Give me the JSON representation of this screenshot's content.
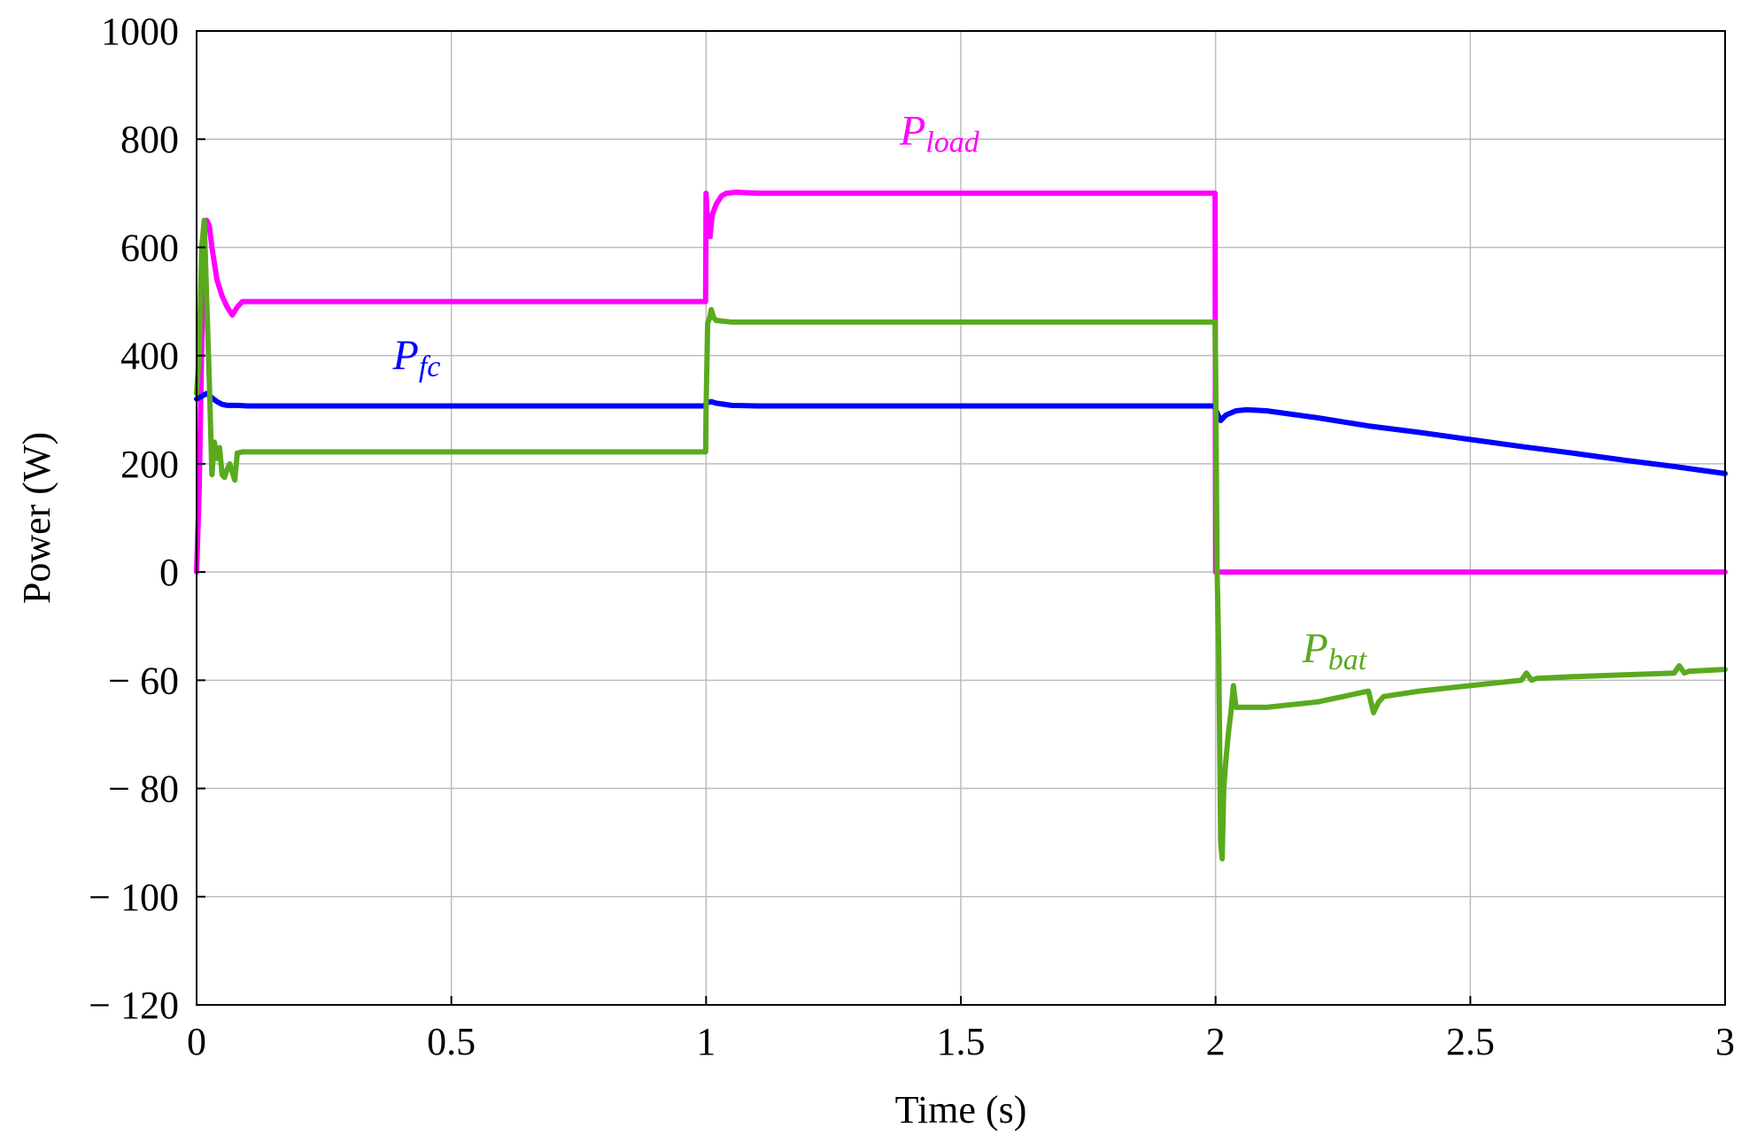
{
  "chart_data": {
    "type": "line",
    "title": "",
    "xlabel": "Time (s)",
    "ylabel": "Power (W)",
    "xlim": [
      0,
      3
    ],
    "x_ticks": [
      0,
      0.5,
      1,
      1.5,
      2,
      2.5,
      3
    ],
    "x_tick_labels": [
      "0",
      "0.5",
      "1",
      "1.5",
      "2",
      "2.5",
      "3"
    ],
    "y_tick_labels": [
      "1000",
      "800",
      "600",
      "400",
      "200",
      "0",
      "− 60",
      "− 80",
      "− 100",
      "− 120"
    ],
    "grid": true,
    "series": [
      {
        "name_main": "P",
        "name_sub": "load",
        "color": "#ff00ff",
        "x": [
          0,
          0.005,
          0.01,
          0.015,
          0.02,
          0.025,
          0.03,
          0.04,
          0.05,
          0.06,
          0.07,
          0.08,
          0.09,
          0.1,
          0.15,
          0.5,
          0.999,
          1.0,
          1.003,
          1.008,
          1.012,
          1.02,
          1.03,
          1.04,
          1.06,
          1.1,
          1.5,
          1.999,
          2.0,
          2.5,
          3
        ],
        "y": [
          0,
          150,
          420,
          630,
          650,
          640,
          600,
          540,
          510,
          490,
          475,
          490,
          500,
          500,
          500,
          500,
          500,
          700,
          640,
          620,
          660,
          680,
          695,
          700,
          702,
          700,
          700,
          700,
          0,
          0,
          0
        ]
      },
      {
        "name_main": "P",
        "name_sub": "fc",
        "color": "#0000ff",
        "x": [
          0,
          0.01,
          0.02,
          0.03,
          0.04,
          0.05,
          0.06,
          0.08,
          0.1,
          0.5,
          0.999,
          1.0,
          1.01,
          1.02,
          1.05,
          1.1,
          1.5,
          1.999,
          2.0,
          2.01,
          2.02,
          2.04,
          2.06,
          2.1,
          2.2,
          2.3,
          2.4,
          2.5,
          2.6,
          2.7,
          2.8,
          2.9,
          3
        ],
        "y": [
          320,
          325,
          330,
          322,
          315,
          310,
          308,
          308,
          307,
          307,
          307,
          312,
          315,
          312,
          308,
          307,
          307,
          307,
          300,
          280,
          290,
          298,
          300,
          298,
          285,
          270,
          258,
          245,
          232,
          220,
          207,
          195,
          182
        ]
      },
      {
        "name_main": "P",
        "name_sub": "bat",
        "color": "#5aaa1e",
        "x": [
          0,
          0.005,
          0.01,
          0.015,
          0.02,
          0.025,
          0.03,
          0.035,
          0.04,
          0.045,
          0.05,
          0.055,
          0.06,
          0.065,
          0.07,
          0.075,
          0.08,
          0.09,
          0.1,
          0.2,
          0.5,
          0.999,
          1.0,
          1.003,
          1.007,
          1.01,
          1.015,
          1.02,
          1.05,
          1.1,
          1.5,
          1.999,
          2.0,
          2.003,
          2.006,
          2.01,
          2.013,
          2.016,
          2.02,
          2.025,
          2.03,
          2.035,
          2.04,
          2.1,
          2.2,
          2.3,
          2.31,
          2.32,
          2.33,
          2.4,
          2.5,
          2.6,
          2.61,
          2.62,
          2.63,
          2.7,
          2.8,
          2.9,
          2.91,
          2.92,
          2.93,
          3
        ],
        "y": [
          330,
          400,
          600,
          650,
          500,
          350,
          180,
          240,
          210,
          230,
          180,
          175,
          190,
          200,
          185,
          170,
          220,
          222,
          222,
          222,
          222,
          222,
          300,
          460,
          470,
          485,
          470,
          465,
          462,
          462,
          462,
          462,
          380,
          0,
          -40,
          -90,
          -93,
          -80,
          -75,
          -70,
          -66,
          -61,
          -65,
          -65,
          -64,
          -62,
          -66,
          -64,
          -63,
          -62,
          -61,
          -60,
          -56,
          -60,
          -59,
          -58,
          -57,
          -56,
          -52,
          -56,
          -55,
          -54
        ]
      }
    ]
  }
}
